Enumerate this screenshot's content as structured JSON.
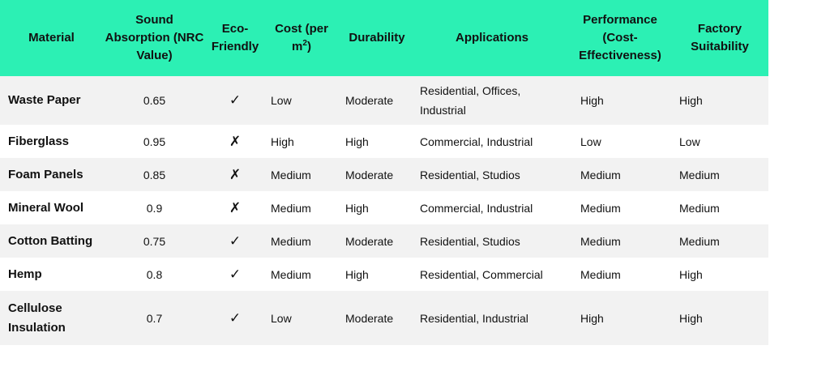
{
  "table": {
    "headers": {
      "material": "Material",
      "sound_absorption": "Sound Absorption (NRC Value)",
      "eco_friendly": "Eco-Friendly",
      "cost": "Cost (per m",
      "cost_sup": "2",
      "cost_tail": ")",
      "durability": "Durability",
      "applications": "Applications",
      "performance": "Performance (Cost-Effectiveness)",
      "factory_suitability": "Factory Suitability"
    },
    "rows": [
      {
        "material": "Waste Paper",
        "nrc": "0.65",
        "eco": "✓",
        "cost": "Low",
        "durability": "Moderate",
        "applications": "Residential, Offices, Industrial",
        "performance": "High",
        "factory": "High"
      },
      {
        "material": "Fiberglass",
        "nrc": "0.95",
        "eco": "✗",
        "cost": "High",
        "durability": "High",
        "applications": "Commercial, Industrial",
        "performance": "Low",
        "factory": "Low"
      },
      {
        "material": "Foam Panels",
        "nrc": "0.85",
        "eco": "✗",
        "cost": "Medium",
        "durability": "Moderate",
        "applications": "Residential, Studios",
        "performance": "Medium",
        "factory": "Medium"
      },
      {
        "material": "Mineral Wool",
        "nrc": "0.9",
        "eco": "✗",
        "cost": "Medium",
        "durability": "High",
        "applications": "Commercial, Industrial",
        "performance": "Medium",
        "factory": "Medium"
      },
      {
        "material": "Cotton Batting",
        "nrc": "0.75",
        "eco": "✓",
        "cost": "Medium",
        "durability": "Moderate",
        "applications": "Residential, Studios",
        "performance": "Medium",
        "factory": "Medium"
      },
      {
        "material": "Hemp",
        "nrc": "0.8",
        "eco": "✓",
        "cost": "Medium",
        "durability": "High",
        "applications": "Residential, Commercial",
        "performance": "Medium",
        "factory": "High"
      },
      {
        "material": "Cellulose Insulation",
        "nrc": "0.7",
        "eco": "✓",
        "cost": "Low",
        "durability": "Moderate",
        "applications": "Residential, Industrial",
        "performance": "High",
        "factory": "High"
      }
    ]
  },
  "colors": {
    "header_background": "#2cf0b4",
    "row_shade": "#f2f2f2",
    "row_plain": "#ffffff"
  }
}
